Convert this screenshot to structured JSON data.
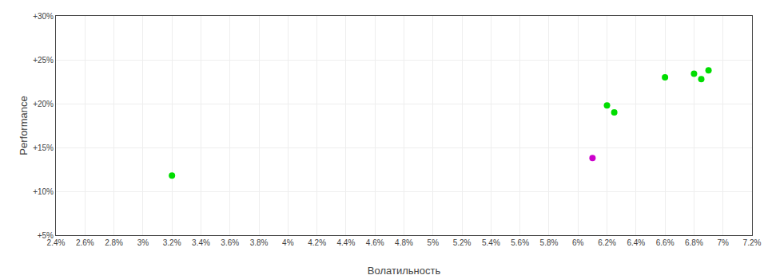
{
  "chart_data": {
    "type": "scatter",
    "xlabel": "Волатильность",
    "ylabel": "Performance",
    "xlim": [
      0.024,
      0.072
    ],
    "ylim": [
      0.05,
      0.3
    ],
    "xticks": [
      {
        "value": 0.024,
        "label": "2.4%"
      },
      {
        "value": 0.026,
        "label": "2.6%"
      },
      {
        "value": 0.028,
        "label": "2.8%"
      },
      {
        "value": 0.03,
        "label": "3%"
      },
      {
        "value": 0.032,
        "label": "3.2%"
      },
      {
        "value": 0.034,
        "label": "3.4%"
      },
      {
        "value": 0.036,
        "label": "3.6%"
      },
      {
        "value": 0.038,
        "label": "3.8%"
      },
      {
        "value": 0.04,
        "label": "4%"
      },
      {
        "value": 0.042,
        "label": "4.2%"
      },
      {
        "value": 0.044,
        "label": "4.4%"
      },
      {
        "value": 0.046,
        "label": "4.6%"
      },
      {
        "value": 0.048,
        "label": "4.8%"
      },
      {
        "value": 0.05,
        "label": "5%"
      },
      {
        "value": 0.052,
        "label": "5.2%"
      },
      {
        "value": 0.054,
        "label": "5.4%"
      },
      {
        "value": 0.056,
        "label": "5.6%"
      },
      {
        "value": 0.058,
        "label": "5.8%"
      },
      {
        "value": 0.06,
        "label": "6%"
      },
      {
        "value": 0.062,
        "label": "6.2%"
      },
      {
        "value": 0.064,
        "label": "6.4%"
      },
      {
        "value": 0.066,
        "label": "6.6%"
      },
      {
        "value": 0.068,
        "label": "6.8%"
      },
      {
        "value": 0.07,
        "label": "7%"
      },
      {
        "value": 0.072,
        "label": "7.2%"
      }
    ],
    "yticks": [
      {
        "value": 0.05,
        "label": "+5%"
      },
      {
        "value": 0.1,
        "label": "+10%"
      },
      {
        "value": 0.15,
        "label": "+15%"
      },
      {
        "value": 0.2,
        "label": "+20%"
      },
      {
        "value": 0.25,
        "label": "+25%"
      },
      {
        "value": 0.3,
        "label": "+30%"
      }
    ],
    "grid": true,
    "series": [
      {
        "color": "#00dd00",
        "x": [
          0.032,
          0.062,
          0.0625,
          0.066,
          0.068,
          0.069,
          0.0685
        ],
        "values": [
          0.118,
          0.198,
          0.19,
          0.23,
          0.234,
          0.238,
          0.228
        ]
      },
      {
        "color": "#cc00cc",
        "x": [
          0.061
        ],
        "values": [
          0.138
        ]
      }
    ]
  }
}
